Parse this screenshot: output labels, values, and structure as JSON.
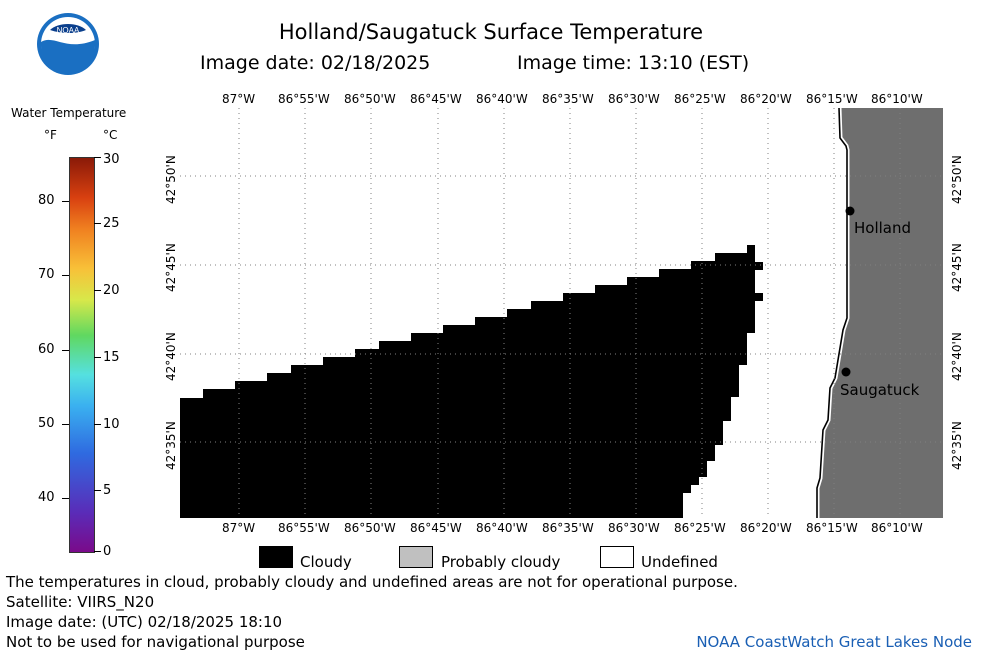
{
  "header": {
    "title": "Holland/Saugatuck Surface Temperature",
    "image_date_label": "Image date: 02/18/2025",
    "image_time_label": "Image time: 13:10 (EST)"
  },
  "logo": {
    "text": "NOAA"
  },
  "legend": {
    "title": "Water Temperature",
    "unit_f": "°F",
    "unit_c": "°C",
    "f_ticks": [
      "80",
      "70",
      "60",
      "50",
      "40"
    ],
    "c_ticks": [
      "30",
      "25",
      "20",
      "15",
      "10",
      "5",
      "0"
    ]
  },
  "map": {
    "lon_labels": [
      "87°W",
      "86°55'W",
      "86°50'W",
      "86°45'W",
      "86°40'W",
      "86°35'W",
      "86°30'W",
      "86°25'W",
      "86°20'W",
      "86°15'W",
      "86°10'W"
    ],
    "lat_labels": [
      "42°50'N",
      "42°45'N",
      "42°40'N",
      "42°35'N"
    ],
    "cities": [
      {
        "name": "Holland"
      },
      {
        "name": "Saugatuck"
      }
    ],
    "colors": {
      "cloudy": "#000000",
      "land": "#6e6e6e",
      "probably_cloudy": "#c0c0c0",
      "undefined": "#ffffff"
    }
  },
  "categories": {
    "cloudy": "Cloudy",
    "probably_cloudy": "Probably cloudy",
    "undefined": "Undefined"
  },
  "footer": {
    "warning": "The temperatures in cloud, probably cloudy and undefined areas are not for operational purpose.",
    "satellite": "Satellite: VIIRS_N20",
    "utc_date": "Image date: (UTC) 02/18/2025  18:10",
    "nav_warning": "Not to be used for navigational purpose",
    "credit": "NOAA CoastWatch Great Lakes Node"
  }
}
